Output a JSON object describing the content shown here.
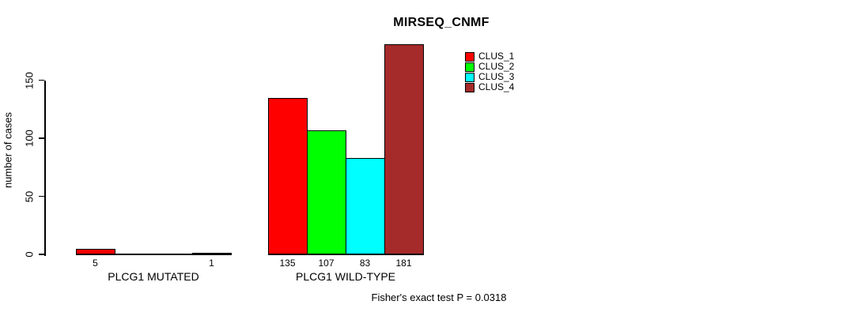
{
  "chart_data": {
    "type": "bar",
    "title": "MIRSEQ_CNMF",
    "ylabel": "number of cases",
    "xlabel": "",
    "yticks": [
      0,
      50,
      100,
      150
    ],
    "ylim": [
      0,
      185
    ],
    "grid": false,
    "legend_position": "top-right",
    "series": [
      "CLUS_1",
      "CLUS_2",
      "CLUS_3",
      "CLUS_4"
    ],
    "series_colors": [
      "#FF0000",
      "#00FF00",
      "#00FFFF",
      "#A52A2A"
    ],
    "groups": [
      {
        "label": "PLCG1 MUTATED",
        "values": [
          5,
          0,
          0,
          1
        ],
        "value_labels": [
          "5",
          "",
          "",
          "1"
        ]
      },
      {
        "label": "PLCG1 WILD-TYPE",
        "values": [
          135,
          107,
          83,
          181
        ],
        "value_labels": [
          "135",
          "107",
          "83",
          "181"
        ]
      }
    ],
    "annotation": "Fisher's exact test P = 0.0318"
  },
  "colors": {
    "CLUS_1": "#FF0000",
    "CLUS_2": "#00FF00",
    "CLUS_3": "#00FFFF",
    "CLUS_4": "#A52A2A",
    "axis": "#000000",
    "background": "#FFFFFF"
  }
}
